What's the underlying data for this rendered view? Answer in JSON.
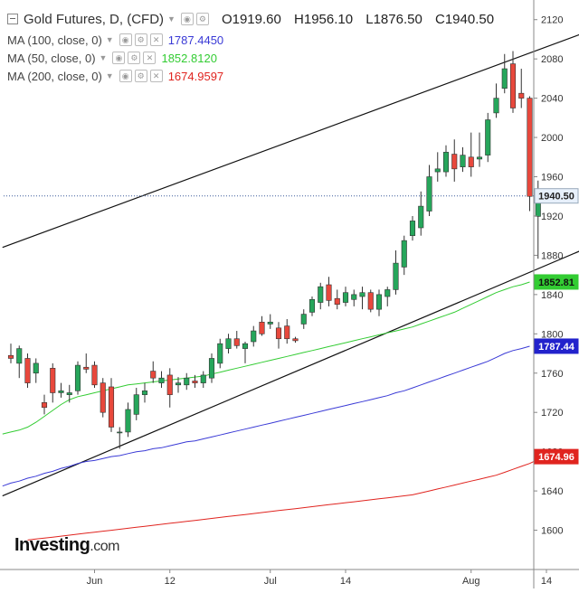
{
  "header": {
    "symbol": "Gold Futures, D, (CFD)",
    "open": "O1919.60",
    "high": "H1956.10",
    "low": "L1876.50",
    "close": "C1940.50"
  },
  "legend": [
    {
      "label": "MA (100, close, 0)",
      "value": "1787.4450",
      "color": "#3a3ad6"
    },
    {
      "label": "MA (50, close, 0)",
      "value": "1852.8120",
      "color": "#33cc33"
    },
    {
      "label": "MA (200, close, 0)",
      "value": "1674.9597",
      "color": "#e0241f"
    }
  ],
  "brand": {
    "name": "Investing",
    "suffix": ".com"
  },
  "chart_data": {
    "type": "candlestick",
    "colors": {
      "up": "#26a65b",
      "down": "#e8483c",
      "ma50": "#33cc33",
      "ma100": "#3a3ad6",
      "ma200": "#e0241f"
    },
    "yaxis": {
      "min": 1560,
      "max": 2140,
      "ticks": [
        1600,
        1640,
        1680,
        1720,
        1760,
        1800,
        1840,
        1880,
        1920,
        1960,
        2000,
        2040,
        2080,
        2120
      ]
    },
    "xaxis": {
      "labels": [
        {
          "text": "Jun",
          "index": 10
        },
        {
          "text": "12",
          "index": 19
        },
        {
          "text": "Jul",
          "index": 31
        },
        {
          "text": "14",
          "index": 40
        },
        {
          "text": "Aug",
          "index": 55
        },
        {
          "text": "14",
          "index": 64
        }
      ]
    },
    "candles": [
      {
        "o": 1778,
        "h": 1790,
        "l": 1770,
        "c": 1775
      },
      {
        "o": 1770,
        "h": 1788,
        "l": 1755,
        "c": 1785
      },
      {
        "o": 1775,
        "h": 1780,
        "l": 1745,
        "c": 1750
      },
      {
        "o": 1760,
        "h": 1775,
        "l": 1750,
        "c": 1770
      },
      {
        "o": 1730,
        "h": 1738,
        "l": 1718,
        "c": 1725
      },
      {
        "o": 1765,
        "h": 1770,
        "l": 1730,
        "c": 1740
      },
      {
        "o": 1740,
        "h": 1750,
        "l": 1735,
        "c": 1742
      },
      {
        "o": 1738,
        "h": 1748,
        "l": 1730,
        "c": 1740
      },
      {
        "o": 1742,
        "h": 1772,
        "l": 1738,
        "c": 1768
      },
      {
        "o": 1766,
        "h": 1780,
        "l": 1760,
        "c": 1764
      },
      {
        "o": 1768,
        "h": 1772,
        "l": 1745,
        "c": 1748
      },
      {
        "o": 1750,
        "h": 1755,
        "l": 1715,
        "c": 1720
      },
      {
        "o": 1746,
        "h": 1755,
        "l": 1700,
        "c": 1705
      },
      {
        "o": 1700,
        "h": 1705,
        "l": 1683,
        "c": 1700
      },
      {
        "o": 1700,
        "h": 1730,
        "l": 1695,
        "c": 1723
      },
      {
        "o": 1718,
        "h": 1745,
        "l": 1712,
        "c": 1738
      },
      {
        "o": 1738,
        "h": 1750,
        "l": 1730,
        "c": 1742
      },
      {
        "o": 1762,
        "h": 1772,
        "l": 1750,
        "c": 1755
      },
      {
        "o": 1750,
        "h": 1762,
        "l": 1745,
        "c": 1755
      },
      {
        "o": 1758,
        "h": 1765,
        "l": 1725,
        "c": 1738
      },
      {
        "o": 1748,
        "h": 1756,
        "l": 1740,
        "c": 1750
      },
      {
        "o": 1748,
        "h": 1760,
        "l": 1743,
        "c": 1755
      },
      {
        "o": 1752,
        "h": 1758,
        "l": 1745,
        "c": 1750
      },
      {
        "o": 1750,
        "h": 1762,
        "l": 1745,
        "c": 1758
      },
      {
        "o": 1755,
        "h": 1780,
        "l": 1750,
        "c": 1775
      },
      {
        "o": 1770,
        "h": 1795,
        "l": 1765,
        "c": 1790
      },
      {
        "o": 1785,
        "h": 1800,
        "l": 1780,
        "c": 1795
      },
      {
        "o": 1795,
        "h": 1803,
        "l": 1785,
        "c": 1788
      },
      {
        "o": 1785,
        "h": 1792,
        "l": 1770,
        "c": 1790
      },
      {
        "o": 1792,
        "h": 1808,
        "l": 1787,
        "c": 1803
      },
      {
        "o": 1812,
        "h": 1818,
        "l": 1798,
        "c": 1800
      },
      {
        "o": 1810,
        "h": 1820,
        "l": 1805,
        "c": 1812
      },
      {
        "o": 1806,
        "h": 1812,
        "l": 1785,
        "c": 1795
      },
      {
        "o": 1808,
        "h": 1815,
        "l": 1790,
        "c": 1795
      },
      {
        "o": 1795,
        "h": 1797,
        "l": 1791,
        "c": 1793
      },
      {
        "o": 1810,
        "h": 1825,
        "l": 1805,
        "c": 1820
      },
      {
        "o": 1822,
        "h": 1838,
        "l": 1818,
        "c": 1835
      },
      {
        "o": 1832,
        "h": 1852,
        "l": 1825,
        "c": 1848
      },
      {
        "o": 1850,
        "h": 1858,
        "l": 1828,
        "c": 1834
      },
      {
        "o": 1836,
        "h": 1845,
        "l": 1825,
        "c": 1830
      },
      {
        "o": 1832,
        "h": 1848,
        "l": 1828,
        "c": 1842
      },
      {
        "o": 1835,
        "h": 1845,
        "l": 1828,
        "c": 1840
      },
      {
        "o": 1838,
        "h": 1848,
        "l": 1825,
        "c": 1842
      },
      {
        "o": 1842,
        "h": 1845,
        "l": 1822,
        "c": 1825
      },
      {
        "o": 1825,
        "h": 1845,
        "l": 1818,
        "c": 1840
      },
      {
        "o": 1838,
        "h": 1848,
        "l": 1828,
        "c": 1845
      },
      {
        "o": 1845,
        "h": 1885,
        "l": 1840,
        "c": 1872
      },
      {
        "o": 1868,
        "h": 1900,
        "l": 1860,
        "c": 1895
      },
      {
        "o": 1900,
        "h": 1920,
        "l": 1895,
        "c": 1915
      },
      {
        "o": 1908,
        "h": 1945,
        "l": 1900,
        "c": 1930
      },
      {
        "o": 1925,
        "h": 1972,
        "l": 1920,
        "c": 1960
      },
      {
        "o": 1965,
        "h": 1985,
        "l": 1955,
        "c": 1968
      },
      {
        "o": 1965,
        "h": 1992,
        "l": 1960,
        "c": 1985
      },
      {
        "o": 1983,
        "h": 1998,
        "l": 1955,
        "c": 1968
      },
      {
        "o": 1970,
        "h": 1990,
        "l": 1965,
        "c": 1982
      },
      {
        "o": 1980,
        "h": 2005,
        "l": 1960,
        "c": 1970
      },
      {
        "o": 1978,
        "h": 2005,
        "l": 1970,
        "c": 1980
      },
      {
        "o": 1982,
        "h": 2025,
        "l": 1975,
        "c": 2018
      },
      {
        "o": 2025,
        "h": 2055,
        "l": 2020,
        "c": 2040
      },
      {
        "o": 2050,
        "h": 2085,
        "l": 2045,
        "c": 2070
      },
      {
        "o": 2075,
        "h": 2088,
        "l": 2025,
        "c": 2030
      },
      {
        "o": 2045,
        "h": 2070,
        "l": 2030,
        "c": 2040
      },
      {
        "o": 2040,
        "h": 2042,
        "l": 1925,
        "c": 1940
      },
      {
        "o": 1919.6,
        "h": 1956.1,
        "l": 1876.5,
        "c": 1940.5
      }
    ],
    "ma50": [
      1698,
      1700,
      1702,
      1705,
      1710,
      1716,
      1722,
      1728,
      1733,
      1736,
      1738,
      1740,
      1742,
      1744,
      1746,
      1748,
      1749,
      1750,
      1751,
      1752,
      1753,
      1754,
      1755,
      1756,
      1757,
      1759,
      1761,
      1763,
      1765,
      1767,
      1769,
      1771,
      1773,
      1775,
      1777,
      1779,
      1781,
      1783,
      1785,
      1787,
      1789,
      1791,
      1793,
      1795,
      1797,
      1799,
      1801,
      1803,
      1805,
      1807,
      1810,
      1813,
      1816,
      1819,
      1822,
      1826,
      1830,
      1834,
      1838,
      1842,
      1845,
      1848,
      1850,
      1852.8
    ],
    "ma100": [
      1645,
      1648,
      1650,
      1653,
      1655,
      1658,
      1660,
      1663,
      1665,
      1668,
      1670,
      1671,
      1673,
      1675,
      1676,
      1678,
      1680,
      1681,
      1683,
      1684,
      1686,
      1688,
      1690,
      1691,
      1693,
      1695,
      1697,
      1699,
      1701,
      1703,
      1705,
      1707,
      1709,
      1711,
      1713,
      1715,
      1717,
      1719,
      1721,
      1723,
      1725,
      1727,
      1729,
      1731,
      1733,
      1735,
      1737,
      1740,
      1742,
      1745,
      1748,
      1751,
      1754,
      1757,
      1760,
      1763,
      1766,
      1769,
      1772,
      1776,
      1780,
      1783,
      1785,
      1787.4
    ],
    "ma200_start": 2,
    "ma200": [
      1590,
      1591,
      1592,
      1593,
      1594,
      1595,
      1596,
      1597,
      1598,
      1599,
      1600,
      1601,
      1602,
      1603,
      1604,
      1605,
      1606,
      1607,
      1608,
      1609,
      1610,
      1611,
      1612,
      1613,
      1614,
      1615,
      1616,
      1617,
      1618,
      1619,
      1620,
      1621,
      1622,
      1623,
      1624,
      1625,
      1626,
      1627,
      1628,
      1629,
      1630,
      1631,
      1632,
      1633,
      1634,
      1635,
      1636,
      1638,
      1640,
      1642,
      1644,
      1646,
      1648,
      1650,
      1652,
      1654,
      1656,
      1659,
      1662,
      1665,
      1668,
      1672,
      1675
    ],
    "trendlines": [
      {
        "name": "upper-channel",
        "from": {
          "i": -1,
          "v": 1888
        },
        "to": {
          "i": 69,
          "v": 2108
        }
      },
      {
        "name": "lower-channel",
        "from": {
          "i": -1,
          "v": 1635
        },
        "to": {
          "i": 69,
          "v": 1888
        }
      }
    ],
    "price_line": 1940.5,
    "last_labels": [
      {
        "text": "1940.50",
        "value": 1940.5,
        "bg": "#e7f0fb",
        "fg": "#222",
        "border": "#9ab"
      },
      {
        "text": "1852.81",
        "value": 1852.81,
        "bg": "#33cc33",
        "fg": "#111",
        "border": "#33cc33"
      },
      {
        "text": "1787.44",
        "value": 1787.44,
        "bg": "#2222cc",
        "fg": "#ffffff",
        "border": "#2222cc"
      },
      {
        "text": "1674.96",
        "value": 1674.96,
        "bg": "#e0241f",
        "fg": "#ffffff",
        "border": "#e0241f"
      }
    ]
  }
}
